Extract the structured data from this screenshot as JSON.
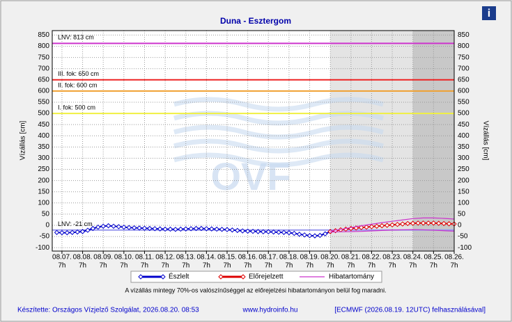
{
  "chart_data": {
    "type": "line",
    "title": "Duna - Esztergom",
    "y_label": "Vízállás [cm]",
    "y2_label": "Vízállás [cm]",
    "watermark": "OVF",
    "info_icon": "i",
    "ylim": [
      -115,
      870
    ],
    "yticks": [
      -100,
      -50,
      0,
      50,
      100,
      150,
      200,
      250,
      300,
      350,
      400,
      450,
      500,
      550,
      600,
      650,
      700,
      750,
      800,
      850
    ],
    "xlim": [
      6.53,
      26.0
    ],
    "xticks": [
      {
        "value": 7,
        "label": "08.07."
      },
      {
        "value": 8,
        "label": "08.08."
      },
      {
        "value": 9,
        "label": "08.09."
      },
      {
        "value": 10,
        "label": "08.10."
      },
      {
        "value": 11,
        "label": "08.11."
      },
      {
        "value": 12,
        "label": "08.12."
      },
      {
        "value": 13,
        "label": "08.13."
      },
      {
        "value": 14,
        "label": "08.14."
      },
      {
        "value": 15,
        "label": "08.15."
      },
      {
        "value": 16,
        "label": "08.16."
      },
      {
        "value": 17,
        "label": "08.17."
      },
      {
        "value": 18,
        "label": "08.18."
      },
      {
        "value": 19,
        "label": "08.19."
      },
      {
        "value": 20,
        "label": "08.20."
      },
      {
        "value": 21,
        "label": "08.21."
      },
      {
        "value": 22,
        "label": "08.22."
      },
      {
        "value": 23,
        "label": "08.23."
      },
      {
        "value": 24,
        "label": "08.24."
      },
      {
        "value": 25,
        "label": "08.25."
      },
      {
        "value": 26,
        "label": "08.26."
      }
    ],
    "xtick_sublabels": [
      "7h",
      "7h",
      "7h",
      "7h",
      "7h",
      "7h",
      "7h",
      "7h",
      "7h",
      "7h",
      "7h",
      "7h",
      "7h",
      "7h",
      "7h",
      "7h",
      "7h",
      "7h",
      "7h",
      "7h"
    ],
    "grid": true,
    "shaded": [
      {
        "from": 20,
        "to": 24,
        "color": "#e4e4e4"
      },
      {
        "from": 24,
        "to": 26,
        "color": "#c8c8c8"
      }
    ],
    "reference_lines": [
      {
        "label": "LNV: 813 cm",
        "value": 813,
        "color": "#cc33cc"
      },
      {
        "label": "III. fok: 650 cm",
        "value": 650,
        "color": "#ee2222"
      },
      {
        "label": "II. fok: 600 cm",
        "value": 600,
        "color": "#f0a030"
      },
      {
        "label": "I. fok: 500 cm",
        "value": 500,
        "color": "#f0f040"
      },
      {
        "label": "LNV: -21 cm",
        "value": -21,
        "color": "#9999ee"
      }
    ],
    "series": [
      {
        "name": "Észlelt",
        "color": "#0000cc",
        "x": [
          6.75,
          7,
          7.25,
          7.5,
          7.75,
          8,
          8.25,
          8.5,
          8.75,
          9,
          9.25,
          9.5,
          9.75,
          10,
          10.25,
          10.5,
          10.75,
          11,
          11.25,
          11.5,
          11.75,
          12,
          12.25,
          12.5,
          12.75,
          13,
          13.25,
          13.5,
          13.75,
          14,
          14.25,
          14.5,
          14.75,
          15,
          15.25,
          15.5,
          15.75,
          16,
          16.25,
          16.5,
          16.75,
          17,
          17.25,
          17.5,
          17.75,
          18,
          18.25,
          18.5,
          18.75,
          19,
          19.25,
          19.5,
          19.75,
          20
        ],
        "values": [
          -32,
          -33,
          -33,
          -32,
          -30,
          -28,
          -22,
          -14,
          -8,
          -4,
          -2,
          -4,
          -6,
          -8,
          -10,
          -11,
          -12,
          -13,
          -14,
          -15,
          -16,
          -17,
          -17,
          -18,
          -17,
          -16,
          -15,
          -14,
          -14,
          -15,
          -16,
          -17,
          -18,
          -19,
          -21,
          -23,
          -25,
          -26,
          -27,
          -28,
          -29,
          -29,
          -30,
          -31,
          -32,
          -33,
          -36,
          -40,
          -43,
          -46,
          -47,
          -45,
          -38,
          -28
        ]
      },
      {
        "name": "Előrejelzett",
        "color": "#dd0000",
        "x": [
          20,
          20.25,
          20.5,
          20.75,
          21,
          21.25,
          21.5,
          21.75,
          22,
          22.25,
          22.5,
          22.75,
          23,
          23.25,
          23.5,
          23.75,
          24,
          24.25,
          24.5,
          24.75,
          25,
          25.25,
          25.5,
          25.75,
          26
        ],
        "values": [
          -28,
          -24,
          -20,
          -17,
          -14,
          -12,
          -10,
          -8,
          -6,
          -4,
          -2,
          0,
          2,
          4,
          6,
          8,
          9,
          10,
          10,
          10,
          10,
          9,
          8,
          7,
          6
        ]
      },
      {
        "name": "Hibatartomány",
        "color": "#cc33cc",
        "x": [
          20,
          20.5,
          21,
          21.5,
          22,
          22.5,
          23,
          23.5,
          24,
          24.5,
          25,
          25.5,
          26
        ],
        "values": [
          -25,
          -18,
          -10,
          -2,
          5,
          12,
          18,
          24,
          30,
          33,
          33,
          31,
          28
        ],
        "lower": [
          -30,
          -29,
          -28,
          -27,
          -25,
          -23,
          -21,
          -20,
          -19,
          -20,
          -22,
          -24,
          -26
        ]
      }
    ],
    "note": "A vízállás mintegy 70%-os valószínűséggel az előrejelzési hibatartományon belül fog maradni.",
    "footer": [
      "Készítette: Országos Vízjelző Szolgálat, 2026.08.20. 08:53",
      "www.hydroinfo.hu",
      "[ECMWF (2026.08.19. 12UTC) felhasználásával]"
    ]
  }
}
